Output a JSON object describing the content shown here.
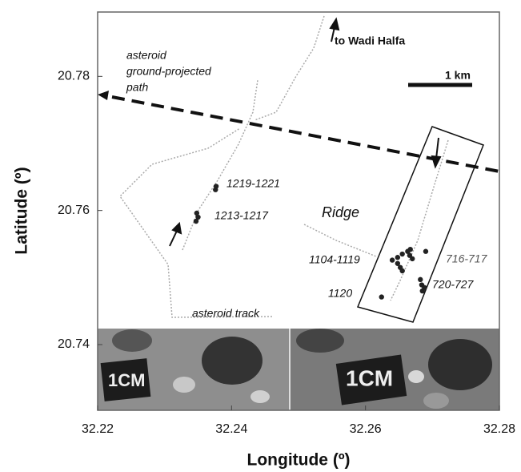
{
  "chart_data": {
    "type": "scatter",
    "x_label": "Longitude (º)",
    "y_label": "Latitude (º)",
    "xlim": [
      32.22,
      32.28
    ],
    "ylim": [
      20.7302,
      20.7896
    ],
    "xticks": [
      32.22,
      32.24,
      32.26,
      32.28
    ],
    "yticks": [
      20.74,
      20.76,
      20.78
    ],
    "color": "#222",
    "x": [
      32.2377,
      32.2376,
      32.2348,
      32.235,
      32.2347,
      32.264,
      32.2648,
      32.2655,
      32.2663,
      32.2667,
      32.2652,
      32.2655,
      32.2648,
      32.2666,
      32.267,
      32.2624,
      32.269,
      32.2682,
      32.2684,
      32.2685,
      32.2688
    ],
    "values": [
      20.7636,
      20.7631,
      20.7596,
      20.759,
      20.7584,
      20.7526,
      20.753,
      20.7535,
      20.7539,
      20.7542,
      20.7515,
      20.751,
      20.7521,
      20.7533,
      20.7528,
      20.7471,
      20.7539,
      20.7497,
      20.7489,
      20.748,
      20.7485
    ],
    "annotations": [
      "asteroid",
      "ground-projected",
      "path",
      "to Wadi Halfa",
      "1 km",
      "1219-1221",
      "1213-1217",
      "Ridge",
      "1104-1119",
      "716-717",
      "1120",
      "720-727",
      "asteroid track",
      "1CM",
      "1CM"
    ]
  }
}
